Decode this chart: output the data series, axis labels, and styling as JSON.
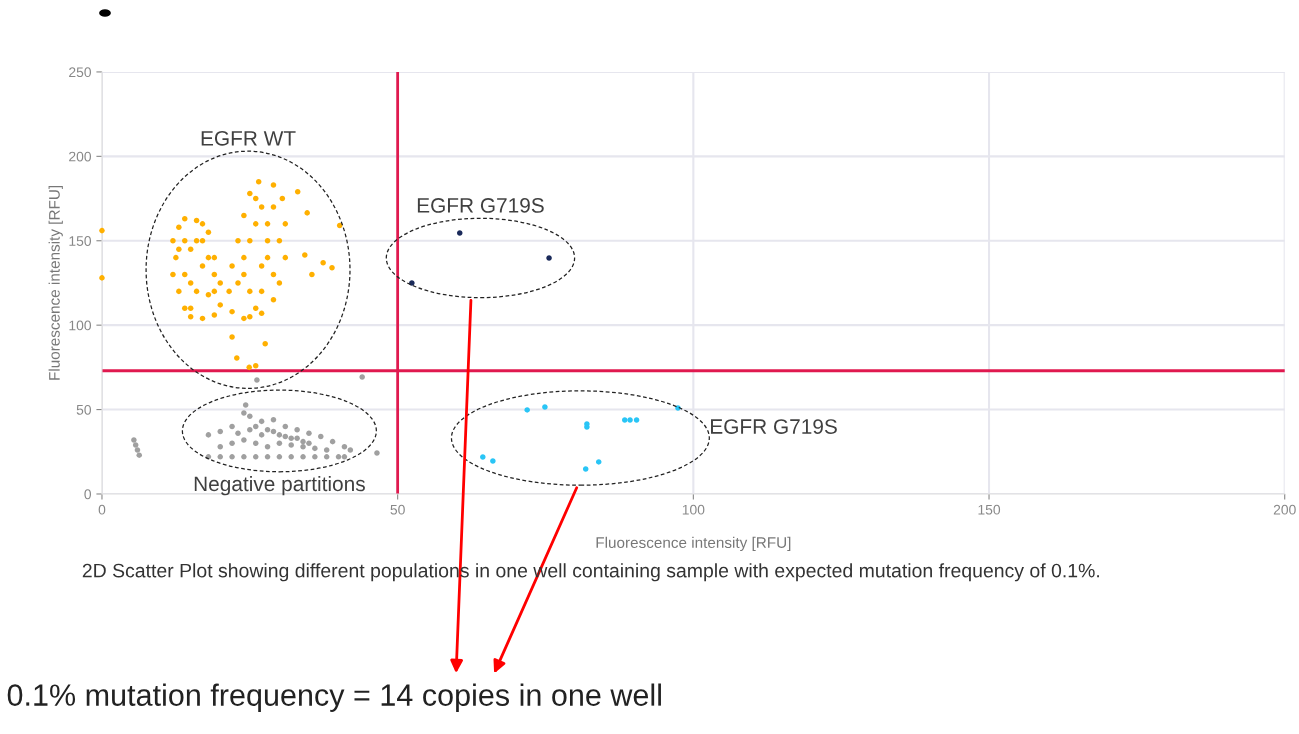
{
  "chart_data": {
    "type": "scatter",
    "xlabel": "Fluorescence intensity [RFU]",
    "ylabel": "Fluorescence intensity [RFU]",
    "xlim": [
      0,
      200
    ],
    "ylim": [
      0,
      250
    ],
    "xticks": [
      0,
      50,
      100,
      150,
      200
    ],
    "yticks": [
      0,
      50,
      100,
      150,
      200,
      250
    ],
    "grid": true,
    "marker": "circle",
    "series": [
      {
        "name": "EGFR WT",
        "color": "#ffb000",
        "x": [
          12,
          12.5,
          12,
          13,
          14,
          15,
          17,
          19,
          20,
          20,
          19,
          18,
          16,
          14,
          13,
          15,
          17,
          16,
          18,
          14,
          17,
          15,
          13,
          19,
          16,
          18,
          14,
          15,
          17,
          19,
          22,
          24,
          27,
          29,
          30,
          31,
          31,
          30.5,
          29,
          26.5,
          25,
          24,
          23,
          22,
          21.5,
          25,
          27,
          28,
          27,
          24,
          26,
          29,
          28,
          23,
          25,
          26,
          28,
          30,
          24,
          26,
          27,
          29,
          25,
          22.8,
          22,
          27.6,
          35.5,
          34.3,
          34.7,
          33.1,
          37.4
        ],
        "values": [
          150,
          140,
          130,
          120,
          110,
          105,
          104,
          106,
          112,
          125,
          140,
          155,
          162,
          163,
          158,
          145,
          135,
          120,
          118,
          130,
          150,
          110,
          145,
          130,
          150,
          140,
          150,
          125,
          160,
          120,
          108,
          104,
          107,
          115,
          125,
          140,
          160,
          175,
          183,
          185,
          178,
          165,
          150,
          135,
          120,
          120,
          135,
          150,
          170,
          140,
          110,
          130,
          160,
          125,
          150,
          160,
          140,
          150,
          130,
          175,
          120,
          170,
          105,
          80.6,
          93,
          89,
          130,
          141.6,
          166.5,
          179,
          137
        ]
      },
      {
        "name": "EGFR G719S",
        "color": "#1a2a5a",
        "x": [
          60.5,
          75.6,
          52.4
        ],
        "values": [
          154.6,
          139.8,
          125
        ]
      },
      {
        "name": "EGFR G719S",
        "color": "#29c5f6",
        "x": [
          71.9,
          74.9,
          82,
          82,
          88.4,
          89.3,
          90.4,
          97.4,
          64.4,
          66.1,
          81.8,
          84
        ],
        "values": [
          49.8,
          51.5,
          41.5,
          39.7,
          43.8,
          43.8,
          43.8,
          50.9,
          21.9,
          19.5,
          14.8,
          19
        ]
      },
      {
        "name": "Negative partitions",
        "color": "#a0a0a0",
        "x": [
          18,
          20,
          22,
          24,
          24.3,
          25,
          27,
          29,
          31,
          33,
          35,
          37,
          39,
          41,
          42,
          18,
          20,
          22,
          24,
          26,
          28,
          30,
          32,
          34,
          36,
          38,
          40,
          41,
          20,
          22,
          24,
          26,
          28,
          30,
          32,
          34,
          36,
          38,
          23,
          25,
          27,
          29,
          31,
          33,
          35,
          26,
          28,
          30,
          32,
          34
        ],
        "values": [
          35,
          37,
          40,
          48,
          52.7,
          46,
          43,
          44,
          40,
          38,
          36,
          34,
          31,
          28,
          26,
          22,
          22,
          22,
          22,
          22,
          22,
          22,
          22,
          22,
          22,
          22,
          22,
          22,
          28,
          30,
          32,
          30,
          28,
          30,
          29,
          28,
          27,
          26,
          36,
          38,
          35,
          37,
          34,
          33,
          30,
          40,
          38,
          35,
          33,
          31
        ]
      },
      {
        "color": "#ffb000",
        "x": [
          0,
          0,
          40.2,
          38.9,
          24.9,
          26
        ],
        "values": [
          156,
          128,
          159,
          134,
          75,
          76
        ]
      },
      {
        "color": "#a0a0a0",
        "x": [
          5.4,
          5.7,
          6,
          6.3,
          26.2,
          44,
          46.5
        ],
        "values": [
          32,
          29,
          26,
          23,
          67.5,
          69.3,
          24.3
        ]
      }
    ],
    "ref_lines": [
      {
        "axis": "x",
        "value": 50,
        "color": "#e0194f"
      },
      {
        "axis": "y",
        "value": 73,
        "color": "#e0194f"
      }
    ],
    "annotations": [
      "2D Scatter Plot showing different populations in one well containing sample with expected mutation frequency of 0.1%.",
      "0.1% mutation frequency = 14 copies in one well"
    ]
  }
}
